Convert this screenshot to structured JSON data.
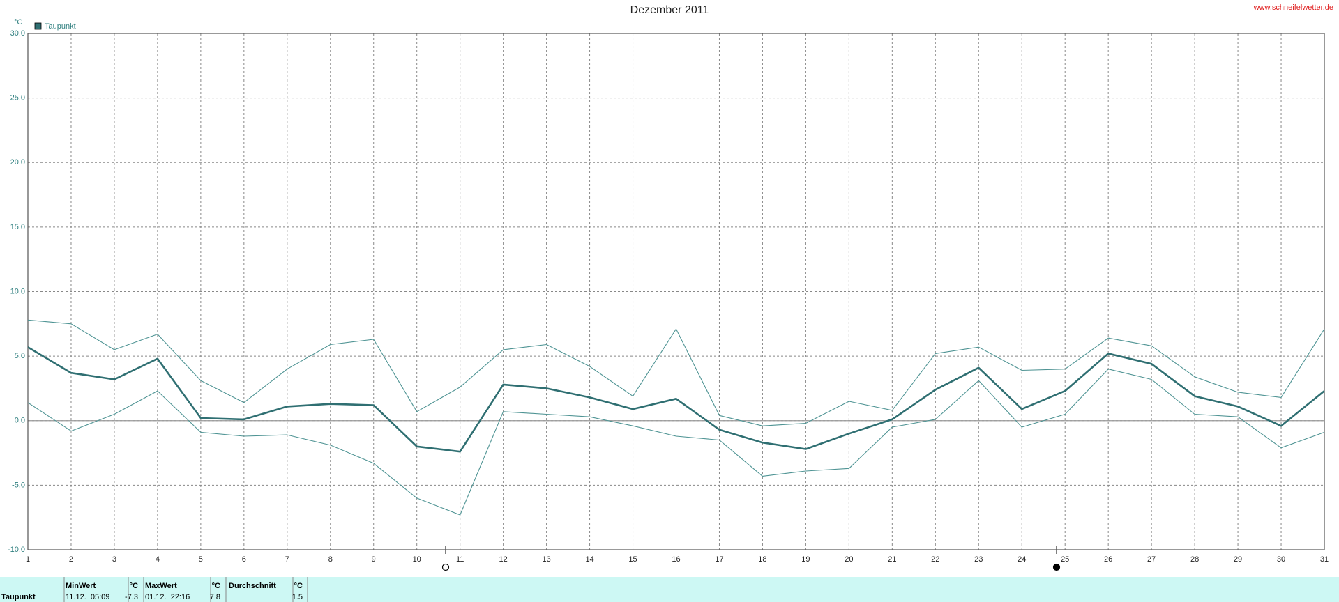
{
  "chart_data": {
    "type": "line",
    "title": "Dezember 2011",
    "source": "www.schneifelwetter.de",
    "y_unit": "°C",
    "x": [
      1,
      2,
      3,
      4,
      5,
      6,
      7,
      8,
      9,
      10,
      11,
      12,
      13,
      14,
      15,
      16,
      17,
      18,
      19,
      20,
      21,
      22,
      23,
      24,
      25,
      26,
      27,
      28,
      29,
      30,
      31
    ],
    "xlim": [
      1,
      31
    ],
    "xticks": [
      1,
      2,
      3,
      4,
      5,
      6,
      7,
      8,
      9,
      10,
      11,
      12,
      13,
      14,
      15,
      16,
      17,
      18,
      19,
      20,
      21,
      22,
      23,
      24,
      25,
      26,
      27,
      28,
      29,
      30,
      31
    ],
    "ylim": [
      -10,
      30
    ],
    "yticks": [
      {
        "value": -10,
        "label": "-10.0"
      },
      {
        "value": -5,
        "label": "-5.0"
      },
      {
        "value": 0,
        "label": "0.0"
      },
      {
        "value": 5,
        "label": "5.0"
      },
      {
        "value": 10,
        "label": "10.0"
      },
      {
        "value": 15,
        "label": "15.0"
      },
      {
        "value": 20,
        "label": "20.0"
      },
      {
        "value": 25,
        "label": "25.0"
      },
      {
        "value": 30,
        "label": "30.0"
      }
    ],
    "grid": true,
    "legend": "top-left",
    "series": [
      {
        "name": "Taupunkt",
        "color": "#2f6f72",
        "values": [
          5.7,
          3.7,
          3.2,
          4.8,
          0.2,
          0.1,
          1.1,
          1.3,
          1.2,
          -2.0,
          -2.4,
          2.8,
          2.5,
          1.8,
          0.9,
          1.7,
          -0.7,
          -1.7,
          -2.2,
          -1.0,
          0.1,
          2.4,
          4.1,
          0.9,
          2.3,
          5.2,
          4.4,
          1.9,
          1.1,
          -0.4,
          2.3
        ]
      },
      {
        "color": "#4f9494",
        "values": [
          7.8,
          7.5,
          5.5,
          6.7,
          3.1,
          1.4,
          4.0,
          5.9,
          6.3,
          0.7,
          2.6,
          5.5,
          5.9,
          4.2,
          1.9,
          7.1,
          0.4,
          -0.4,
          -0.2,
          1.5,
          0.8,
          5.2,
          5.7,
          3.9,
          4.0,
          6.4,
          5.8,
          3.4,
          2.2,
          1.8,
          7.1
        ]
      },
      {
        "color": "#4f9494",
        "values": [
          1.4,
          -0.8,
          0.5,
          2.3,
          -0.9,
          -1.2,
          -1.1,
          -1.9,
          -3.3,
          -6.0,
          -7.3,
          0.7,
          0.5,
          0.3,
          -0.4,
          -1.2,
          -1.5,
          -4.3,
          -3.9,
          -3.7,
          -0.5,
          0.1,
          3.1,
          -0.5,
          0.5,
          4.0,
          3.2,
          0.5,
          0.3,
          -2.1,
          -0.9
        ]
      }
    ]
  },
  "table": {
    "columns": [
      "MinWert",
      "°C",
      "MaxWert",
      "°C",
      "Durchschnitt",
      "°C"
    ],
    "rows": [
      [
        "Taupunkt",
        "11.12.  05:09",
        "-7.3",
        "01.12.  22:16",
        "7.8",
        "1.5"
      ]
    ]
  }
}
